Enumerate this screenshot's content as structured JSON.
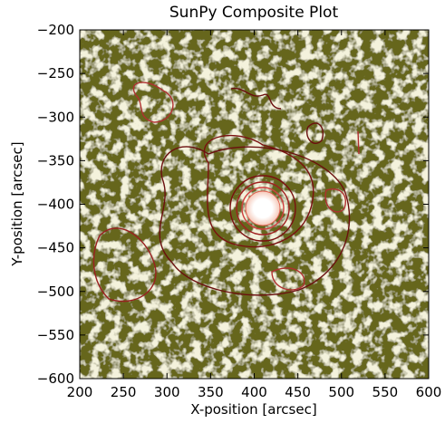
{
  "chart_data": {
    "type": "image",
    "title": "SunPy Composite Plot",
    "xlabel": "X-position [arcsec]",
    "ylabel": "Y-position [arcsec]",
    "xlim": [
      200,
      600
    ],
    "ylim": [
      -600,
      -200
    ],
    "xticks": [
      200,
      250,
      300,
      350,
      400,
      450,
      500,
      550,
      600
    ],
    "yticks": [
      {
        "value": -600,
        "label": "−600"
      },
      {
        "value": -550,
        "label": "−550"
      },
      {
        "value": -500,
        "label": "−500"
      },
      {
        "value": -450,
        "label": "−450"
      },
      {
        "value": -400,
        "label": "−400"
      },
      {
        "value": -350,
        "label": "−350"
      },
      {
        "value": -300,
        "label": "−300"
      },
      {
        "value": -250,
        "label": "−250"
      },
      {
        "value": -200,
        "label": "−200"
      }
    ]
  }
}
